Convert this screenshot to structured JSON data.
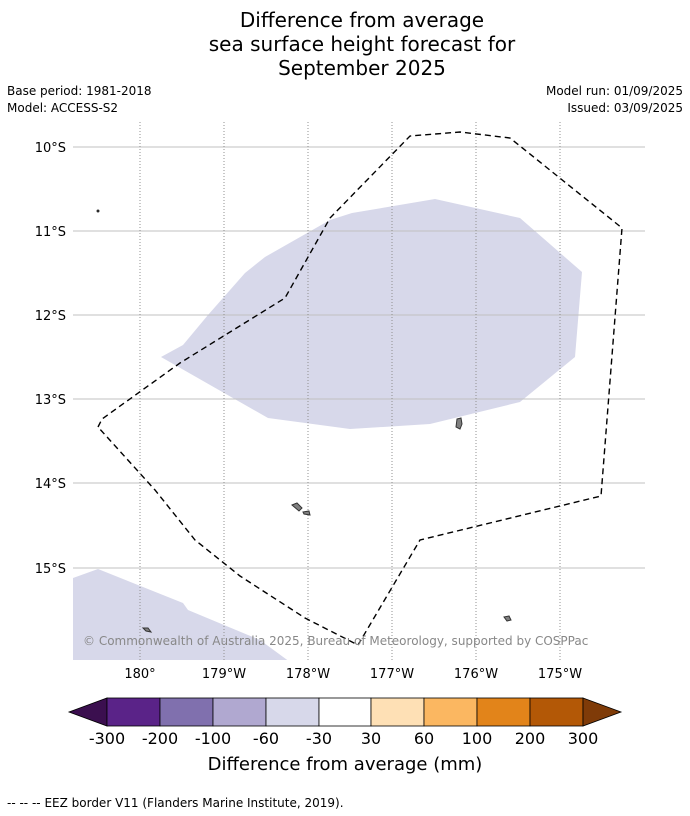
{
  "title": {
    "line1": "Difference from average",
    "line2": "sea surface height forecast for",
    "line3": "September 2025"
  },
  "meta": {
    "base_period": "Base period: 1981-2018",
    "model": "Model: ACCESS-S2",
    "model_run": "Model run: 01/09/2025",
    "issued": "Issued: 03/09/2025"
  },
  "map": {
    "lat_labels": [
      "10°S",
      "11°S",
      "12°S",
      "13°S",
      "14°S",
      "15°S"
    ],
    "lon_labels": [
      "180°",
      "179°W",
      "178°W",
      "177°W",
      "176°W",
      "175°W"
    ],
    "copyright": "© Commonwealth of Australia 2025, Bureau of Meteorology, supported by COSPPac",
    "anomaly_color": "#d7d8ea",
    "land_color": "#808080"
  },
  "colorbar": {
    "ticks": [
      "-300",
      "-200",
      "-100",
      "-60",
      "-30",
      "30",
      "60",
      "100",
      "200",
      "300"
    ],
    "colors": [
      "#3b0f4f",
      "#5a2388",
      "#8070ae",
      "#b0a8d0",
      "#d7d8ea",
      "#ffffff",
      "#fee0b5",
      "#fbb761",
      "#e2841a",
      "#b35806",
      "#7f3b08"
    ],
    "label": "Difference from average (mm)"
  },
  "footer": {
    "legend_symbol": "--  --  --",
    "legend_text": "EEZ border V11 (Flanders Marine Institute, 2019)."
  }
}
